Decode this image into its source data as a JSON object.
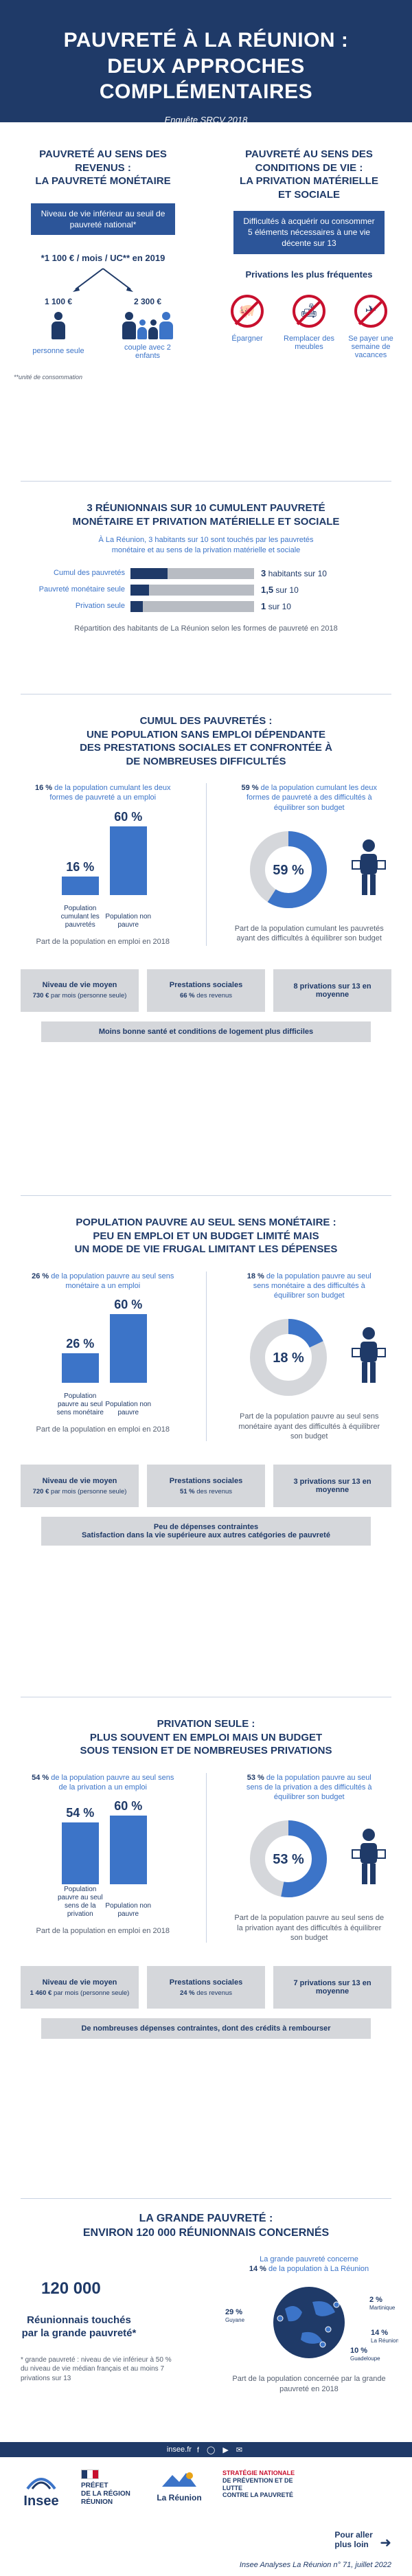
{
  "header": {
    "title_line1": "PAUVRETÉ À LA RÉUNION :",
    "title_line2": "DEUX APPROCHES COMPLÉMENTAIRES",
    "subtitle": "Enquête SRCV 2018"
  },
  "intro": {
    "left": {
      "title_line1": "PAUVRETÉ AU SENS DES",
      "title_line2": "REVENUS :",
      "title_line3": "LA PAUVRETÉ MONÉTAIRE",
      "pill": "Niveau de vie inférieur au seuil de pauvreté national*",
      "threshold": "*1 100 € / mois / UC** en 2019",
      "amount1": "1 100 €",
      "amount2": "2 300 €",
      "person1": "personne seule",
      "person2": "couple avec 2 enfants",
      "footnote": "**unité de consommation"
    },
    "right": {
      "title_line1": "PAUVRETÉ AU SENS DES",
      "title_line2": "CONDITIONS DE VIE :",
      "title_line3": "LA PRIVATION MATÉRIELLE",
      "title_line4": "ET SOCIALE",
      "pill": "Difficultés à acquérir ou consommer 5 éléments nécessaires à une vie décente sur 13",
      "subhead": "Privations les plus fréquentes",
      "items": [
        "Épargner",
        "Remplacer des meubles",
        "Se payer une semaine de vacances"
      ]
    }
  },
  "cumul": {
    "title_line1": "3 RÉUNIONNAIS SUR 10 CUMULENT PAUVRETÉ",
    "title_line2": "MONÉTAIRE ET PRIVATION MATÉRIELLE ET SOCIALE",
    "lead": "À La Réunion, 3 habitants sur 10 sont touchés par les pauvretés monétaire et au sens de la privation matérielle et sociale",
    "caption": "Répartition des habitants de La Réunion selon les formes de pauvreté en 2018",
    "chart_data": {
      "type": "bar",
      "categories": [
        "Cumul des pauvretés",
        "Pauvreté monétaire seule",
        "Privation seule"
      ],
      "values": [
        3,
        1.5,
        1
      ],
      "value_labels": [
        "3",
        "1,5",
        "1"
      ],
      "value_suffix": " sur 10",
      "value_prefix": [
        "habitants sur ",
        "",
        ""
      ],
      "xlim": [
        0,
        10
      ]
    }
  },
  "s1": {
    "title_line1": "CUMUL DES PAUVRETÉS :",
    "title_line2": "UNE POPULATION SANS EMPLOI DÉPENDANTE",
    "title_line3": "DES PRESTATIONS SOCIALES ET CONFRONTÉE À",
    "title_line4": "DE NOMBREUSES DIFFICULTÉS",
    "left_lead_pct": "16 %",
    "left_lead": "de la population cumulant les deux formes de pauvreté a un emploi",
    "right_lead_pct": "59 %",
    "right_lead": "de la population cumulant les deux formes de pauvreté a des difficultés à équilibrer son budget",
    "bar_caption": "Part de la population en emploi en 2018",
    "donut_caption": "Part de la population cumulant les pauvretés ayant des difficultés à équilibrer son budget",
    "chart_data": [
      {
        "type": "bar",
        "categories": [
          "Population cumulant les pauvretés",
          "Population non pauvre"
        ],
        "values": [
          16,
          60
        ],
        "value_labels": [
          "16 %",
          "60 %"
        ],
        "ylim": [
          0,
          60
        ]
      },
      {
        "type": "pie",
        "categories": [
          "difficultés",
          "autres"
        ],
        "values": [
          59,
          41
        ],
        "value_label": "59 %"
      }
    ],
    "boxes": [
      {
        "title": "Niveau de vie moyen",
        "value": "730 €",
        "note": "par mois (personne seule)"
      },
      {
        "title": "Prestations sociales",
        "value": "66 %",
        "note": "des revenus"
      },
      {
        "title": "8 privations sur 13 en moyenne",
        "value": "",
        "note": ""
      }
    ],
    "wide": "Moins bonne santé et conditions de logement plus difficiles"
  },
  "s2": {
    "title_line1": "POPULATION PAUVRE AU SEUL SENS MONÉTAIRE :",
    "title_line2": "PEU EN EMPLOI ET UN BUDGET LIMITÉ MAIS",
    "title_line3": "UN MODE DE VIE FRUGAL LIMITANT LES DÉPENSES",
    "left_lead_pct": "26 %",
    "left_lead": "de la population pauvre au seul sens monétaire a un emploi",
    "right_lead_pct": "18 %",
    "right_lead": "de la population pauvre au seul sens monétaire a des difficultés à équilibrer son budget",
    "bar_caption": "Part de la population en emploi en 2018",
    "donut_caption": "Part de la population pauvre au seul sens monétaire ayant des difficultés à équilibrer son budget",
    "chart_data": [
      {
        "type": "bar",
        "categories": [
          "Population pauvre au seul sens monétaire",
          "Population non pauvre"
        ],
        "values": [
          26,
          60
        ],
        "value_labels": [
          "26 %",
          "60 %"
        ],
        "ylim": [
          0,
          60
        ]
      },
      {
        "type": "pie",
        "categories": [
          "difficultés",
          "autres"
        ],
        "values": [
          18,
          82
        ],
        "value_label": "18 %"
      }
    ],
    "boxes": [
      {
        "title": "Niveau de vie moyen",
        "value": "720 €",
        "note": "par mois (personne seule)"
      },
      {
        "title": "Prestations sociales",
        "value": "51 %",
        "note": "des revenus"
      },
      {
        "title": "3 privations sur 13 en moyenne",
        "value": "",
        "note": ""
      }
    ],
    "wide_line1": "Peu de dépenses contraintes",
    "wide_line2": "Satisfaction dans la vie supérieure aux autres catégories de pauvreté"
  },
  "s3": {
    "title_line1": "PRIVATION SEULE :",
    "title_line2": "PLUS SOUVENT EN EMPLOI MAIS UN BUDGET",
    "title_line3": "SOUS TENSION ET DE NOMBREUSES PRIVATIONS",
    "left_lead_pct": "54 %",
    "left_lead": "de la population pauvre au seul sens de la privation a un emploi",
    "right_lead_pct": "53 %",
    "right_lead": "de la population pauvre au seul sens de la privation a des difficultés à équilibrer son budget",
    "bar_caption": "Part de la population en emploi en 2018",
    "donut_caption": "Part de la population pauvre au seul sens de la privation ayant des difficultés à équilibrer son budget",
    "chart_data": [
      {
        "type": "bar",
        "categories": [
          "Population pauvre au seul sens de la privation",
          "Population non pauvre"
        ],
        "values": [
          54,
          60
        ],
        "value_labels": [
          "54 %",
          "60 %"
        ],
        "ylim": [
          0,
          60
        ]
      },
      {
        "type": "pie",
        "categories": [
          "difficultés",
          "autres"
        ],
        "values": [
          53,
          47
        ],
        "value_label": "53 %"
      }
    ],
    "boxes": [
      {
        "title": "Niveau de vie moyen",
        "value": "1 460 €",
        "note": "par mois (personne seule)"
      },
      {
        "title": "Prestations sociales",
        "value": "24 %",
        "note": "des revenus"
      },
      {
        "title": "7 privations sur 13 en moyenne",
        "value": "",
        "note": ""
      }
    ],
    "wide": "De nombreuses dépenses contraintes, dont des crédits à rembourser"
  },
  "s4": {
    "title_line1": "LA GRANDE PAUVRETÉ :",
    "title_line2": "ENVIRON 120 000 RÉUNIONNAIS CONCERNÉS",
    "big_number": "120 000",
    "big_label": "Réunionnais touchés par la grande pauvreté*",
    "footnote": "* grande pauvreté : niveau de vie inférieur à 50 % du niveau de vie médian français et au moins 7 privations sur 13",
    "map_lead_line1": "La grande pauvreté concerne",
    "map_lead_pct": "14 %",
    "map_lead_line2": "de la population à La Réunion",
    "map_caption": "Part de la population concernée par la grande pauvreté en 2018",
    "chart_data": {
      "type": "bar",
      "categories": [
        "Martinique",
        "La Réunion",
        "Guyane",
        "Guadeloupe"
      ],
      "values": [
        2,
        14,
        29,
        10
      ],
      "value_labels": [
        "2 %",
        "14 %",
        "29 %",
        "10 %"
      ]
    }
  },
  "footer": {
    "band": "insee.fr",
    "logo1": "Insee",
    "logo2_line1": "PRÉFET",
    "logo2_line2": "DE LA RÉGION",
    "logo2_line3": "RÉUNION",
    "logo3": "La Réunion",
    "logo4_line1": "STRATÉGIE NATIONALE",
    "logo4_line2": "DE PRÉVENTION ET DE LUTTE",
    "logo4_line3": "CONTRE LA PAUVRETÉ",
    "more_line1": "Pour aller",
    "more_line2": "plus loin",
    "ref": "Insee Analyses La Réunion n° 71, juillet 2022"
  },
  "colors": {
    "navy": "#1f3a68",
    "blue": "#3c74c8",
    "grey": "#d5d7db",
    "red": "#c8102e"
  }
}
